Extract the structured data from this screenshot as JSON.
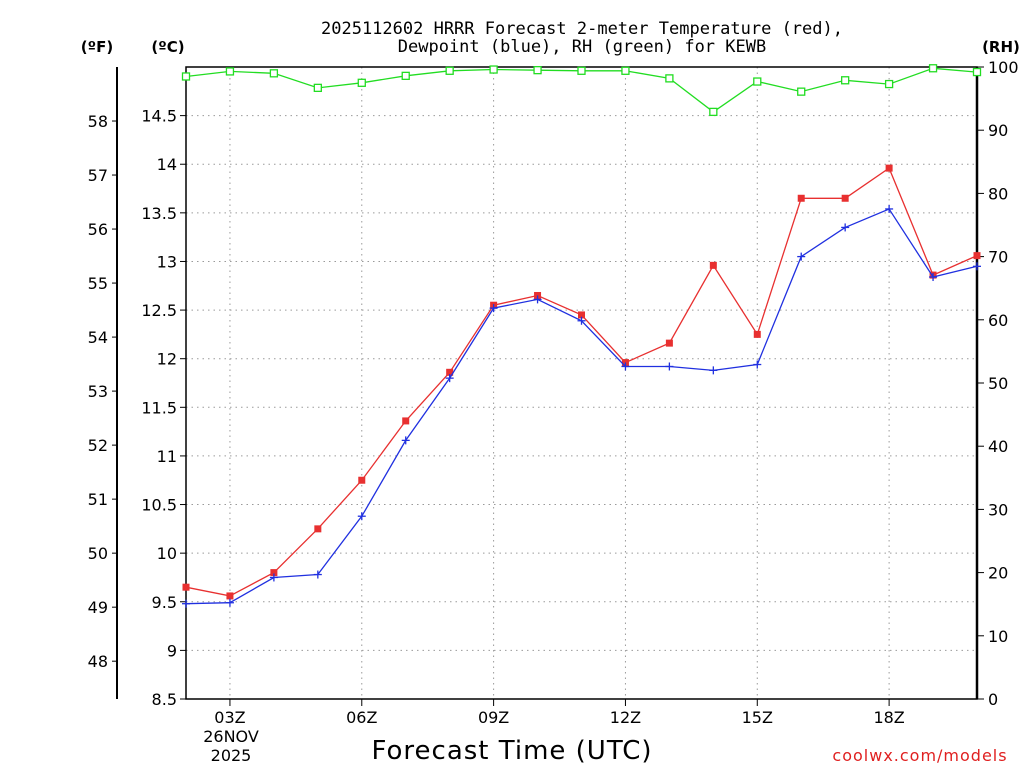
{
  "chart_data": {
    "type": "line",
    "title_line1": "2025112602 HRRR Forecast 2-meter Temperature (red),",
    "title_line2": "Dewpoint (blue), RH (green) for KEWB",
    "units": {
      "fahrenheit": "(ºF)",
      "celsius": "(ºC)",
      "rh": "(RH)"
    },
    "xlabel": "Forecast Time (UTC)",
    "credit": "coolwx.com/models",
    "x_hours": [
      2,
      3,
      4,
      5,
      6,
      7,
      8,
      9,
      10,
      11,
      12,
      13,
      14,
      15,
      16,
      17,
      18,
      19,
      20
    ],
    "x_range": [
      2,
      20
    ],
    "x_ticks": [
      {
        "hour": 3,
        "label": "03Z"
      },
      {
        "hour": 6,
        "label": "06Z"
      },
      {
        "hour": 9,
        "label": "09Z"
      },
      {
        "hour": 12,
        "label": "12Z"
      },
      {
        "hour": 15,
        "label": "15Z"
      },
      {
        "hour": 18,
        "label": "18Z"
      }
    ],
    "date_label_line1": "26NOV",
    "date_label_line2": "2025",
    "celsius_axis": {
      "ylim": [
        8.5,
        15.0
      ],
      "ticks": [
        "8.5",
        "9",
        "9.5",
        "10",
        "10.5",
        "11",
        "11.5",
        "12",
        "12.5",
        "13",
        "13.5",
        "14",
        "14.5"
      ]
    },
    "fahrenheit_ticks": [
      "48",
      "49",
      "50",
      "51",
      "52",
      "53",
      "54",
      "55",
      "56",
      "57",
      "58"
    ],
    "rh_axis": {
      "ylim": [
        0,
        100
      ],
      "ticks": [
        "0",
        "10",
        "20",
        "30",
        "40",
        "50",
        "60",
        "70",
        "80",
        "90",
        "100"
      ]
    },
    "series": [
      {
        "name": "Temperature",
        "unit": "C",
        "color": "#e83030",
        "marker": "filled-square",
        "values": [
          9.65,
          9.56,
          9.8,
          10.25,
          10.75,
          11.36,
          11.86,
          12.55,
          12.65,
          12.45,
          11.96,
          12.16,
          12.96,
          12.25,
          13.65,
          13.65,
          13.96,
          12.86,
          13.06
        ]
      },
      {
        "name": "Dewpoint",
        "unit": "C",
        "color": "#2030e0",
        "marker": "plus",
        "values": [
          9.48,
          9.49,
          9.75,
          9.78,
          10.38,
          11.16,
          11.8,
          12.52,
          12.61,
          12.39,
          11.92,
          11.92,
          11.88,
          11.94,
          13.05,
          13.35,
          13.54,
          12.84,
          12.95
        ]
      },
      {
        "name": "RH",
        "unit": "%",
        "color": "#22dd22",
        "marker": "open-square",
        "values": [
          98.5,
          99.3,
          99.0,
          96.7,
          97.5,
          98.6,
          99.4,
          99.6,
          99.5,
          99.4,
          99.4,
          98.2,
          92.9,
          97.7,
          96.1,
          97.9,
          97.3,
          99.8,
          99.2
        ]
      }
    ]
  }
}
